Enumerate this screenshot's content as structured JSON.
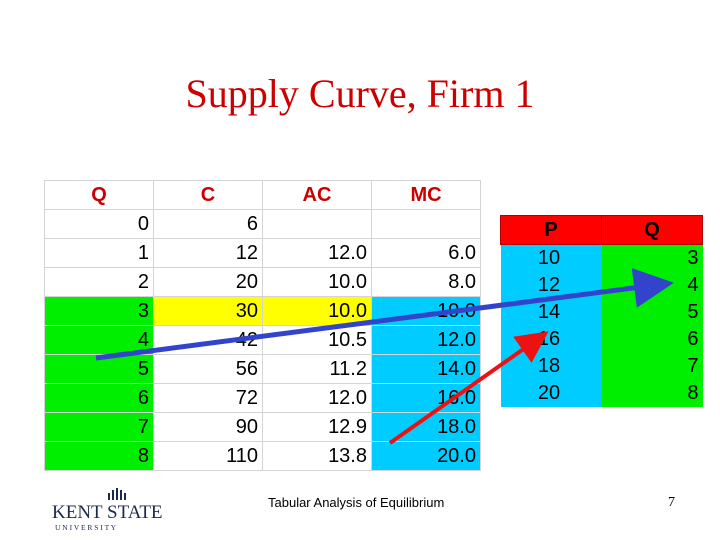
{
  "slide": {
    "title": "Supply Curve, Firm 1",
    "footer": "Tabular Analysis of Equilibrium",
    "page_number": "7",
    "logo_text": "KENT STATE",
    "logo_subtext": "U N I V E R S I T Y"
  },
  "cost_table": {
    "headers": [
      "Q",
      "C",
      "AC",
      "MC"
    ],
    "rows": [
      [
        "0",
        "6",
        "",
        ""
      ],
      [
        "1",
        "12",
        "12.0",
        "6.0"
      ],
      [
        "2",
        "20",
        "10.0",
        "8.0"
      ],
      [
        "3",
        "30",
        "10.0",
        "10.0"
      ],
      [
        "4",
        "42",
        "10.5",
        "12.0"
      ],
      [
        "5",
        "56",
        "11.2",
        "14.0"
      ],
      [
        "6",
        "72",
        "12.0",
        "16.0"
      ],
      [
        "7",
        "90",
        "12.9",
        "18.0"
      ],
      [
        "8",
        "110",
        "13.8",
        "20.0"
      ]
    ]
  },
  "supply_table": {
    "headers": [
      "P",
      "Q"
    ],
    "rows": [
      [
        "10",
        "3"
      ],
      [
        "12",
        "4"
      ],
      [
        "14",
        "5"
      ],
      [
        "16",
        "6"
      ],
      [
        "18",
        "7"
      ],
      [
        "20",
        "8"
      ]
    ]
  },
  "colors": {
    "title": "#cc0000",
    "header_text": "#cc0000",
    "green": "#00ee00",
    "yellow": "#ffff00",
    "cyan": "#00ccff",
    "red_header": "#ff0000",
    "arrow_blue": "#3344cc",
    "arrow_red": "#ee1111"
  }
}
